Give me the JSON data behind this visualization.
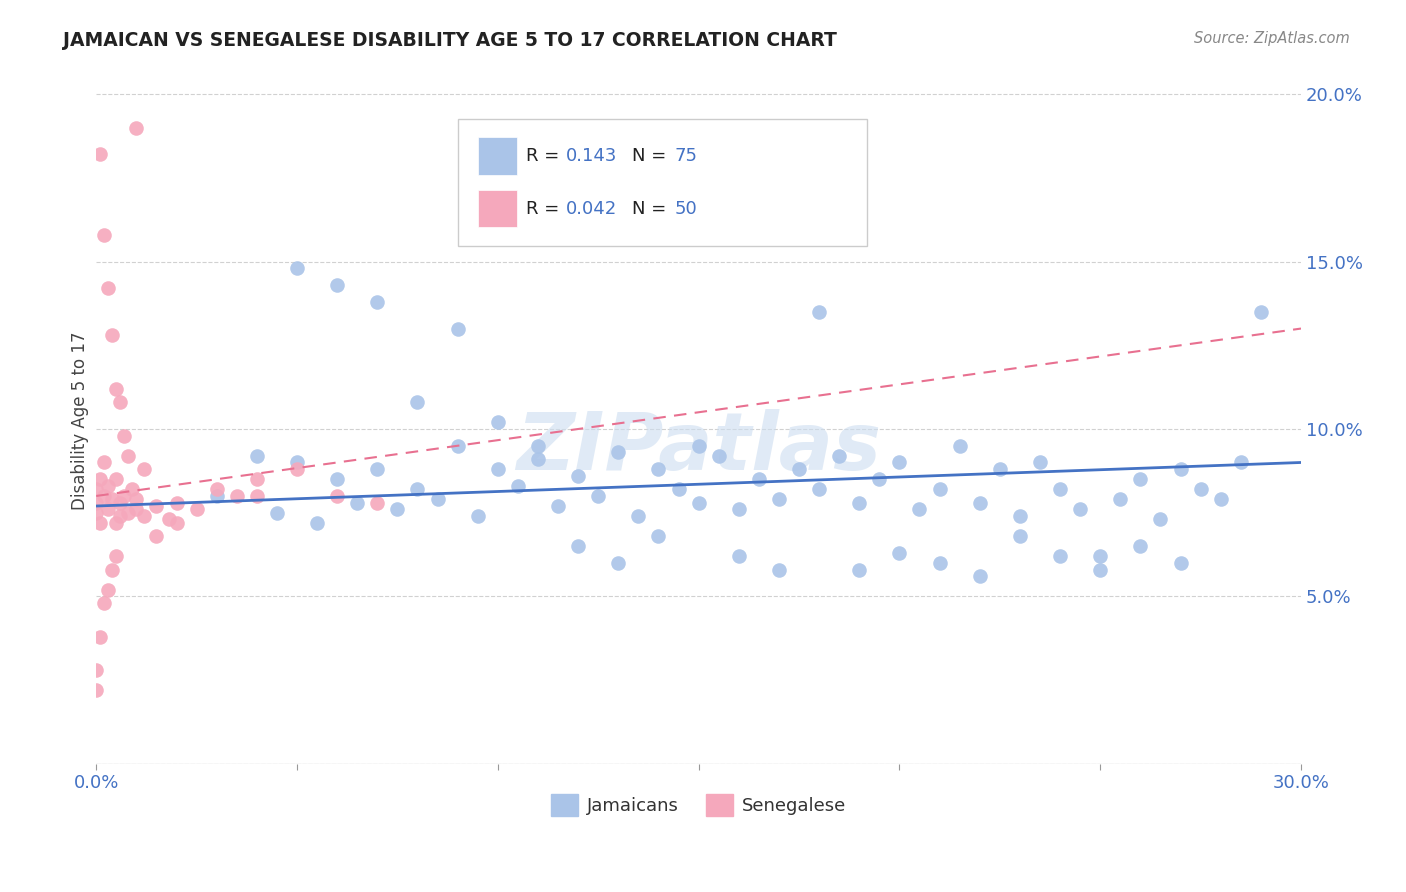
{
  "title": "JAMAICAN VS SENEGALESE DISABILITY AGE 5 TO 17 CORRELATION CHART",
  "source": "Source: ZipAtlas.com",
  "ylabel": "Disability Age 5 to 17",
  "xlim": [
    0.0,
    0.3
  ],
  "ylim": [
    0.0,
    0.205
  ],
  "xtick_vals": [
    0.0,
    0.05,
    0.1,
    0.15,
    0.2,
    0.25,
    0.3
  ],
  "xtick_labels": [
    "0.0%",
    "",
    "",
    "",
    "",
    "",
    "30.0%"
  ],
  "ytick_vals": [
    0.0,
    0.05,
    0.1,
    0.15,
    0.2
  ],
  "ytick_labels": [
    "",
    "5.0%",
    "10.0%",
    "15.0%",
    "20.0%"
  ],
  "jamaican_color": "#aac4e8",
  "senegalese_color": "#f5a8bc",
  "trend_blue": "#4472c4",
  "trend_pink": "#e87090",
  "watermark_color": "#ccddf0",
  "jamaican_R": 0.143,
  "jamaican_N": 75,
  "senegalese_R": 0.042,
  "senegalese_N": 50,
  "jamaican_x": [
    0.03,
    0.045,
    0.05,
    0.055,
    0.06,
    0.065,
    0.07,
    0.075,
    0.08,
    0.085,
    0.09,
    0.095,
    0.1,
    0.105,
    0.11,
    0.115,
    0.12,
    0.125,
    0.13,
    0.135,
    0.14,
    0.145,
    0.15,
    0.155,
    0.16,
    0.165,
    0.17,
    0.175,
    0.18,
    0.185,
    0.19,
    0.195,
    0.2,
    0.205,
    0.21,
    0.215,
    0.22,
    0.225,
    0.23,
    0.235,
    0.24,
    0.245,
    0.25,
    0.255,
    0.26,
    0.265,
    0.27,
    0.275,
    0.28,
    0.285,
    0.05,
    0.06,
    0.07,
    0.08,
    0.09,
    0.1,
    0.11,
    0.12,
    0.13,
    0.14,
    0.15,
    0.16,
    0.17,
    0.18,
    0.19,
    0.2,
    0.21,
    0.22,
    0.23,
    0.24,
    0.25,
    0.26,
    0.27,
    0.29,
    0.04
  ],
  "jamaican_y": [
    0.08,
    0.075,
    0.09,
    0.072,
    0.085,
    0.078,
    0.088,
    0.076,
    0.082,
    0.079,
    0.095,
    0.074,
    0.088,
    0.083,
    0.091,
    0.077,
    0.086,
    0.08,
    0.093,
    0.074,
    0.088,
    0.082,
    0.078,
    0.092,
    0.076,
    0.085,
    0.079,
    0.088,
    0.082,
    0.092,
    0.078,
    0.085,
    0.09,
    0.076,
    0.082,
    0.095,
    0.078,
    0.088,
    0.074,
    0.09,
    0.082,
    0.076,
    0.062,
    0.079,
    0.085,
    0.073,
    0.088,
    0.082,
    0.079,
    0.09,
    0.148,
    0.143,
    0.138,
    0.108,
    0.13,
    0.102,
    0.095,
    0.065,
    0.06,
    0.068,
    0.095,
    0.062,
    0.058,
    0.135,
    0.058,
    0.063,
    0.06,
    0.056,
    0.068,
    0.062,
    0.058,
    0.065,
    0.06,
    0.135,
    0.092
  ],
  "senegalese_x": [
    0.0,
    0.0,
    0.0,
    0.001,
    0.001,
    0.002,
    0.002,
    0.003,
    0.003,
    0.004,
    0.005,
    0.005,
    0.006,
    0.006,
    0.007,
    0.008,
    0.009,
    0.01,
    0.01,
    0.012,
    0.015,
    0.018,
    0.02,
    0.025,
    0.03,
    0.035,
    0.04,
    0.05,
    0.06,
    0.07,
    0.001,
    0.002,
    0.003,
    0.004,
    0.005,
    0.006,
    0.007,
    0.008,
    0.01,
    0.012,
    0.0,
    0.0,
    0.001,
    0.002,
    0.003,
    0.004,
    0.005,
    0.04,
    0.015,
    0.02
  ],
  "senegalese_y": [
    0.078,
    0.082,
    0.075,
    0.085,
    0.072,
    0.09,
    0.08,
    0.076,
    0.083,
    0.079,
    0.085,
    0.072,
    0.078,
    0.074,
    0.08,
    0.075,
    0.082,
    0.076,
    0.079,
    0.074,
    0.077,
    0.073,
    0.078,
    0.076,
    0.082,
    0.08,
    0.085,
    0.088,
    0.08,
    0.078,
    0.182,
    0.158,
    0.142,
    0.128,
    0.112,
    0.108,
    0.098,
    0.092,
    0.19,
    0.088,
    0.022,
    0.028,
    0.038,
    0.048,
    0.052,
    0.058,
    0.062,
    0.08,
    0.068,
    0.072
  ],
  "jam_trend_x": [
    0.0,
    0.3
  ],
  "jam_trend_y": [
    0.077,
    0.09
  ],
  "sen_trend_x": [
    0.0,
    0.3
  ],
  "sen_trend_y": [
    0.08,
    0.13
  ]
}
